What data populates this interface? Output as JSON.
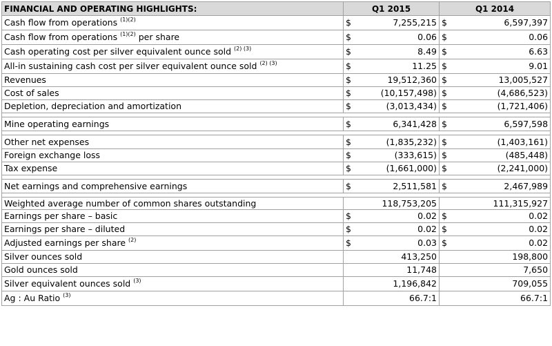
{
  "table": {
    "header": {
      "title": "FINANCIAL AND OPERATING HIGHLIGHTS:",
      "col1": "Q1 2015",
      "col2": "Q1 2014"
    },
    "rows": [
      {
        "label": "Cash flow from operations ",
        "sup": "(1)(2)",
        "suffix": "",
        "cur1": "$",
        "v1": "7,255,215",
        "cur2": "$",
        "v2": "6,597,397",
        "h": 21
      },
      {
        "label": "Cash flow from operations ",
        "sup": "(1)(2)",
        "suffix": " per share",
        "cur1": "$",
        "v1": "0.06",
        "cur2": "$",
        "v2": "0.06",
        "h": 21
      },
      {
        "label": "Cash operating cost per silver equivalent ounce sold ",
        "sup": "(2) (3)",
        "suffix": "",
        "cur1": "$",
        "v1": "8.49",
        "cur2": "$",
        "v2": "6.63",
        "h": 21
      },
      {
        "label": "All-in sustaining cash cost per silver equivalent ounce sold ",
        "sup": "(2) (3)",
        "suffix": "",
        "cur1": "$",
        "v1": "11.25",
        "cur2": "$",
        "v2": "9.01",
        "h": 21
      },
      {
        "label": "Revenues",
        "sup": "",
        "suffix": "",
        "cur1": "$",
        "v1": "19,512,360",
        "cur2": "$",
        "v2": "13,005,527",
        "h": 19
      },
      {
        "label": "Cost of sales",
        "sup": "",
        "suffix": "",
        "cur1": "$",
        "v1": "(10,157,498)",
        "cur2": "$",
        "v2": "(4,686,523)",
        "h": 19
      },
      {
        "label": "Depletion, depreciation and amortization",
        "sup": "",
        "suffix": "",
        "cur1": "$",
        "v1": "(3,013,434)",
        "cur2": "$",
        "v2": "(1,721,406)",
        "h": 19
      },
      {
        "gap": true
      },
      {
        "label": "Mine operating earnings",
        "sup": "",
        "suffix": "",
        "cur1": "$",
        "v1": "6,341,428",
        "cur2": "$",
        "v2": "6,597,598",
        "h": 20
      },
      {
        "gap": true
      },
      {
        "label": "Other net expenses",
        "sup": "",
        "suffix": "",
        "cur1": "$",
        "v1": "(1,835,232)",
        "cur2": "$",
        "v2": "(1,403,161)",
        "h": 20
      },
      {
        "label": "Foreign exchange loss",
        "sup": "",
        "suffix": "",
        "cur1": "$",
        "v1": "(333,615)",
        "cur2": "$",
        "v2": "(485,448)",
        "h": 19
      },
      {
        "label": "Tax expense",
        "sup": "",
        "suffix": "",
        "cur1": "$",
        "v1": "(1,661,000)",
        "cur2": "$",
        "v2": "(2,241,000)",
        "h": 19
      },
      {
        "gap": true
      },
      {
        "label": "Net earnings and comprehensive earnings",
        "sup": "",
        "suffix": "",
        "cur1": "$",
        "v1": "2,511,581",
        "cur2": "$",
        "v2": "2,467,989",
        "h": 20
      },
      {
        "gap": true
      },
      {
        "label": "Weighted average number of common shares outstanding",
        "sup": "",
        "suffix": "",
        "cur1": "",
        "v1": "118,753,205",
        "cur2": "",
        "v2": "111,315,927",
        "h": 18
      },
      {
        "label": "Earnings per share – basic",
        "sup": "",
        "suffix": "",
        "cur1": "$",
        "v1": "0.02",
        "cur2": "$",
        "v2": "0.02",
        "h": 19
      },
      {
        "label": "Earnings per share – diluted",
        "sup": "",
        "suffix": "",
        "cur1": "$",
        "v1": "0.02",
        "cur2": "$",
        "v2": "0.02",
        "h": 19
      },
      {
        "label": "Adjusted earnings per share ",
        "sup": "(2)",
        "suffix": "",
        "cur1": "$",
        "v1": "0.03",
        "cur2": "$",
        "v2": "0.02",
        "h": 21
      },
      {
        "label": "Silver ounces sold",
        "sup": "",
        "suffix": "",
        "cur1": "",
        "v1": "413,250",
        "cur2": "",
        "v2": "198,800",
        "h": 19
      },
      {
        "label": "Gold ounces sold",
        "sup": "",
        "suffix": "",
        "cur1": "",
        "v1": "11,748",
        "cur2": "",
        "v2": "7,650",
        "h": 19
      },
      {
        "label": "Silver equivalent ounces sold ",
        "sup": "(3)",
        "suffix": "",
        "cur1": "",
        "v1": "1,196,842",
        "cur2": "",
        "v2": "709,055",
        "h": 21
      },
      {
        "label": "Ag : Au Ratio ",
        "sup": "(3)",
        "suffix": "",
        "cur1": "",
        "v1": "66.7:1",
        "cur2": "",
        "v2": "66.7:1",
        "h": 21
      }
    ]
  }
}
